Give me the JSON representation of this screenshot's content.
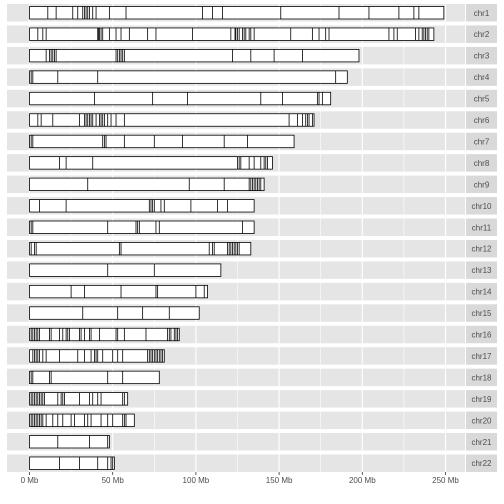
{
  "chart_data": {
    "type": "ideogram",
    "x_unit": "Mb",
    "xlim": [
      0,
      260
    ],
    "x_ticks": [
      0,
      50,
      100,
      150,
      200,
      250
    ],
    "x_tick_labels": [
      "0 Mb",
      "50 Mb",
      "100 Mb",
      "150 Mb",
      "200 Mb",
      "250 Mb"
    ],
    "grid": true,
    "strip_position": "right",
    "band_color": "#e5e5e5",
    "bar_fill": "#ffffff",
    "bar_stroke": "#000000",
    "chromosomes": [
      {
        "name": "chr1",
        "length": 249,
        "breaks": [
          11,
          16,
          26,
          29,
          32,
          33,
          34,
          35,
          36,
          38,
          40,
          48,
          58,
          104,
          110,
          116,
          151,
          186,
          204,
          222,
          231,
          234
        ]
      },
      {
        "name": "chr2",
        "length": 243,
        "breaks": [
          5,
          8,
          10,
          41,
          41.5,
          42,
          43,
          44,
          48,
          52,
          55,
          60,
          71,
          76,
          98,
          121,
          123.5,
          124,
          125,
          126,
          128,
          129,
          130,
          132,
          133,
          135,
          157,
          170,
          174,
          178,
          180,
          216,
          219,
          221,
          232,
          234,
          236,
          237,
          238,
          239,
          240
        ]
      },
      {
        "name": "chr3",
        "length": 198,
        "breaks": [
          10,
          12,
          13,
          14,
          15,
          16,
          52,
          53,
          54,
          55,
          56,
          57,
          122,
          133,
          147,
          164
        ]
      },
      {
        "name": "chr4",
        "length": 191,
        "breaks": [
          1,
          2,
          17,
          41,
          184
        ]
      },
      {
        "name": "chr5",
        "length": 181,
        "breaks": [
          39,
          74,
          95,
          139,
          152,
          173,
          174,
          176
        ]
      },
      {
        "name": "chr6",
        "length": 171,
        "breaks": [
          5,
          7,
          14,
          30,
          33,
          34,
          35,
          36,
          37,
          38,
          40,
          42,
          43,
          44,
          45,
          47,
          49,
          52,
          57,
          156,
          161,
          164,
          166,
          167,
          168,
          170
        ]
      },
      {
        "name": "chr7",
        "length": 159,
        "breaks": [
          1,
          2,
          44,
          45,
          46,
          57,
          75,
          92,
          117,
          131
        ]
      },
      {
        "name": "chr8",
        "length": 146,
        "breaks": [
          18,
          22,
          38,
          125,
          126,
          127,
          132,
          135,
          139,
          141,
          142,
          143
        ]
      },
      {
        "name": "chr9",
        "length": 141,
        "breaks": [
          35,
          96,
          117,
          132,
          133,
          134,
          135,
          136,
          137,
          138,
          139
        ]
      },
      {
        "name": "chr10",
        "length": 135,
        "breaks": [
          6,
          22,
          72,
          73,
          74,
          75,
          79,
          81,
          97,
          113,
          119
        ]
      },
      {
        "name": "chr11",
        "length": 135,
        "breaks": [
          1,
          2,
          47,
          64,
          65,
          66,
          76,
          78,
          128
        ]
      },
      {
        "name": "chr12",
        "length": 133,
        "breaks": [
          1,
          3,
          4,
          54,
          55,
          108,
          110,
          111,
          119,
          120,
          121,
          122,
          123,
          124,
          125,
          126
        ]
      },
      {
        "name": "chr13",
        "length": 115,
        "breaks": [
          47,
          75
        ]
      },
      {
        "name": "chr14",
        "length": 107,
        "breaks": [
          25,
          33,
          55,
          76,
          77,
          100,
          105
        ]
      },
      {
        "name": "chr15",
        "length": 102,
        "breaks": [
          32,
          53,
          68,
          84
        ]
      },
      {
        "name": "chr16",
        "length": 90,
        "breaks": [
          1,
          2,
          3,
          4,
          5,
          6,
          12,
          13,
          18,
          20,
          22,
          23,
          24,
          30,
          31,
          33,
          36,
          37,
          42,
          52,
          53,
          57,
          70,
          83,
          84,
          85,
          87,
          88,
          89
        ]
      },
      {
        "name": "chr17",
        "length": 81,
        "breaks": [
          2,
          3,
          4,
          5,
          6,
          8,
          10,
          18,
          29,
          33,
          37,
          39,
          40,
          41,
          44,
          50,
          53,
          56,
          71,
          72,
          73,
          74,
          75,
          76,
          77,
          78,
          79,
          80
        ]
      },
      {
        "name": "chr18",
        "length": 78,
        "breaks": [
          1,
          2,
          12,
          13,
          47,
          56
        ]
      },
      {
        "name": "chr19",
        "length": 59,
        "breaks": [
          1,
          2,
          3,
          4,
          5,
          6,
          7,
          8,
          9,
          17,
          19,
          20,
          21,
          30,
          36,
          38,
          41,
          43,
          56,
          57
        ]
      },
      {
        "name": "chr20",
        "length": 63,
        "breaks": [
          1,
          2,
          3,
          4,
          5,
          6,
          7,
          8,
          10,
          14,
          17,
          20,
          25,
          27,
          33,
          35,
          37,
          43,
          47,
          50,
          56,
          57,
          58
        ]
      },
      {
        "name": "chr21",
        "length": 48,
        "breaks": [
          17,
          36,
          47
        ]
      },
      {
        "name": "chr22",
        "length": 51,
        "breaks": [
          18,
          30,
          41,
          47,
          49,
          50
        ]
      }
    ]
  }
}
